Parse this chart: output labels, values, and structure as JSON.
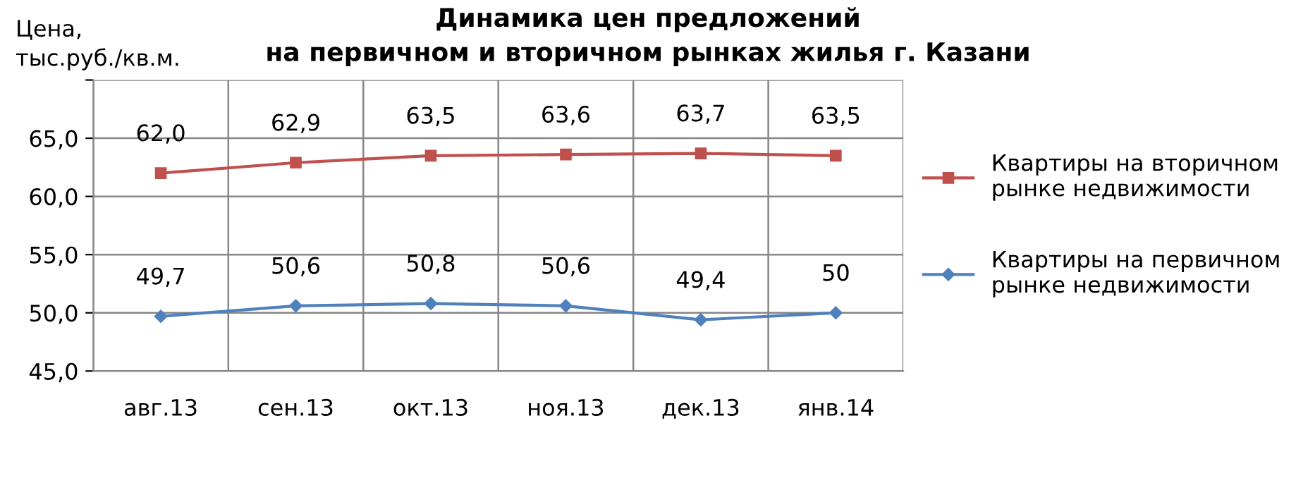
{
  "chart_data": {
    "type": "line",
    "title": "Динамика цен предложений\nна первичном и вторичном рынках жилья г. Казани",
    "ylabel": "Цена,\nтыс.руб./кв.м.",
    "categories": [
      "авг.13",
      "сен.13",
      "окт.13",
      "ноя.13",
      "дек.13",
      "янв.14"
    ],
    "series": [
      {
        "name": "Квартиры на вторичном\nрынке недвижимости",
        "color": "#c0504d",
        "marker": "square",
        "values": [
          62.0,
          62.9,
          63.5,
          63.6,
          63.7,
          63.5
        ],
        "value_labels": [
          "62,0",
          "62,9",
          "63,5",
          "63,6",
          "63,7",
          "63,5"
        ]
      },
      {
        "name": "Квартиры на первичном\nрынке недвижимости",
        "color": "#4f81bd",
        "marker": "diamond",
        "values": [
          49.7,
          50.6,
          50.8,
          50.6,
          49.4,
          50
        ],
        "value_labels": [
          "49,7",
          "50,6",
          "50,8",
          "50,6",
          "49,4",
          "50"
        ]
      }
    ],
    "ylim": [
      45,
      70
    ],
    "yticks": [
      {
        "value": 45,
        "label": "45,0"
      },
      {
        "value": 50,
        "label": "50,0"
      },
      {
        "value": 55,
        "label": "55,0"
      },
      {
        "value": 60,
        "label": "60,0"
      },
      {
        "value": 65,
        "label": "65,0"
      },
      {
        "value": 70,
        "label": null
      }
    ],
    "grid": true,
    "legend": "right",
    "line_style": "solid"
  }
}
